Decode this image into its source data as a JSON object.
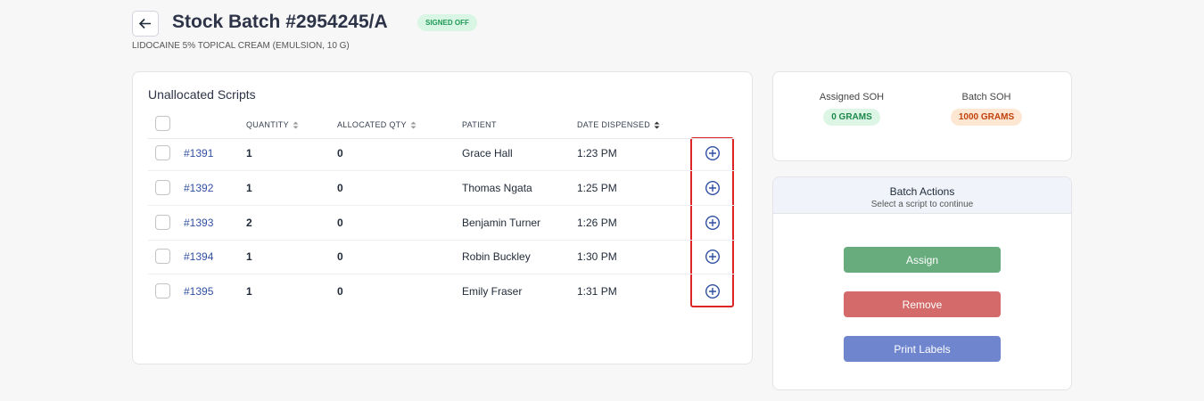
{
  "header": {
    "title": "Stock Batch #2954245/A",
    "status": "SIGNED OFF",
    "subtitle": "LIDOCAINE 5% TOPICAL CREAM (EMULSION, 10 G)"
  },
  "scripts": {
    "title": "Unallocated Scripts",
    "columns": [
      "QUANTITY",
      "ALLOCATED QTY",
      "PATIENT",
      "DATE DISPENSED"
    ],
    "rows": [
      {
        "id": "#1391",
        "quantity": 1,
        "allocated": 0,
        "patient": "Grace Hall",
        "date": "1:23 PM"
      },
      {
        "id": "#1392",
        "quantity": 1,
        "allocated": 0,
        "patient": "Thomas Ngata",
        "date": "1:25 PM"
      },
      {
        "id": "#1393",
        "quantity": 2,
        "allocated": 0,
        "patient": "Benjamin Turner",
        "date": "1:26 PM"
      },
      {
        "id": "#1394",
        "quantity": 1,
        "allocated": 0,
        "patient": "Robin Buckley",
        "date": "1:30 PM"
      },
      {
        "id": "#1395",
        "quantity": 1,
        "allocated": 0,
        "patient": "Emily Fraser",
        "date": "1:31 PM"
      }
    ]
  },
  "soh": [
    {
      "label": "Assigned SOH",
      "value": "0 GRAMS"
    },
    {
      "label": "Batch SOH",
      "value": "1000 GRAMS"
    }
  ],
  "actions": {
    "title": "Batch Actions",
    "subtitle": "Select a script to continue",
    "buttons": [
      "Assign",
      "Remove",
      "Print Labels"
    ]
  }
}
